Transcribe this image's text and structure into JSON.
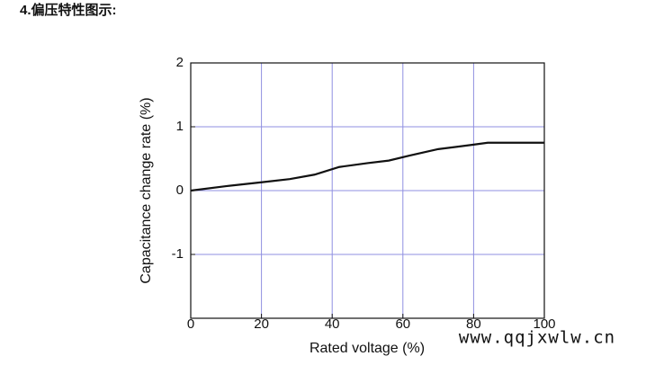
{
  "header": {
    "title": "4.偏压特性图示:"
  },
  "chart_data": {
    "type": "line",
    "xlabel": "Rated voltage (%)",
    "ylabel": "Capacitance change rate (%)",
    "x": [
      0,
      10,
      20,
      28,
      35,
      42,
      50,
      56,
      62,
      70,
      80,
      84,
      100
    ],
    "series": [
      {
        "name": null,
        "color": "#111111",
        "values": [
          0,
          0.07,
          0.13,
          0.18,
          0.25,
          0.37,
          0.43,
          0.47,
          0.55,
          0.65,
          0.72,
          0.75,
          0.75
        ]
      }
    ],
    "xlim": [
      0,
      100
    ],
    "xticks": [
      0,
      20,
      40,
      60,
      80,
      100
    ],
    "ylim": [
      -2,
      2
    ],
    "yticks": [
      -1,
      0,
      1,
      2
    ],
    "grid": true,
    "grid_color": "#8f8fe0"
  },
  "watermark": "www.qqjxwlw.cn"
}
